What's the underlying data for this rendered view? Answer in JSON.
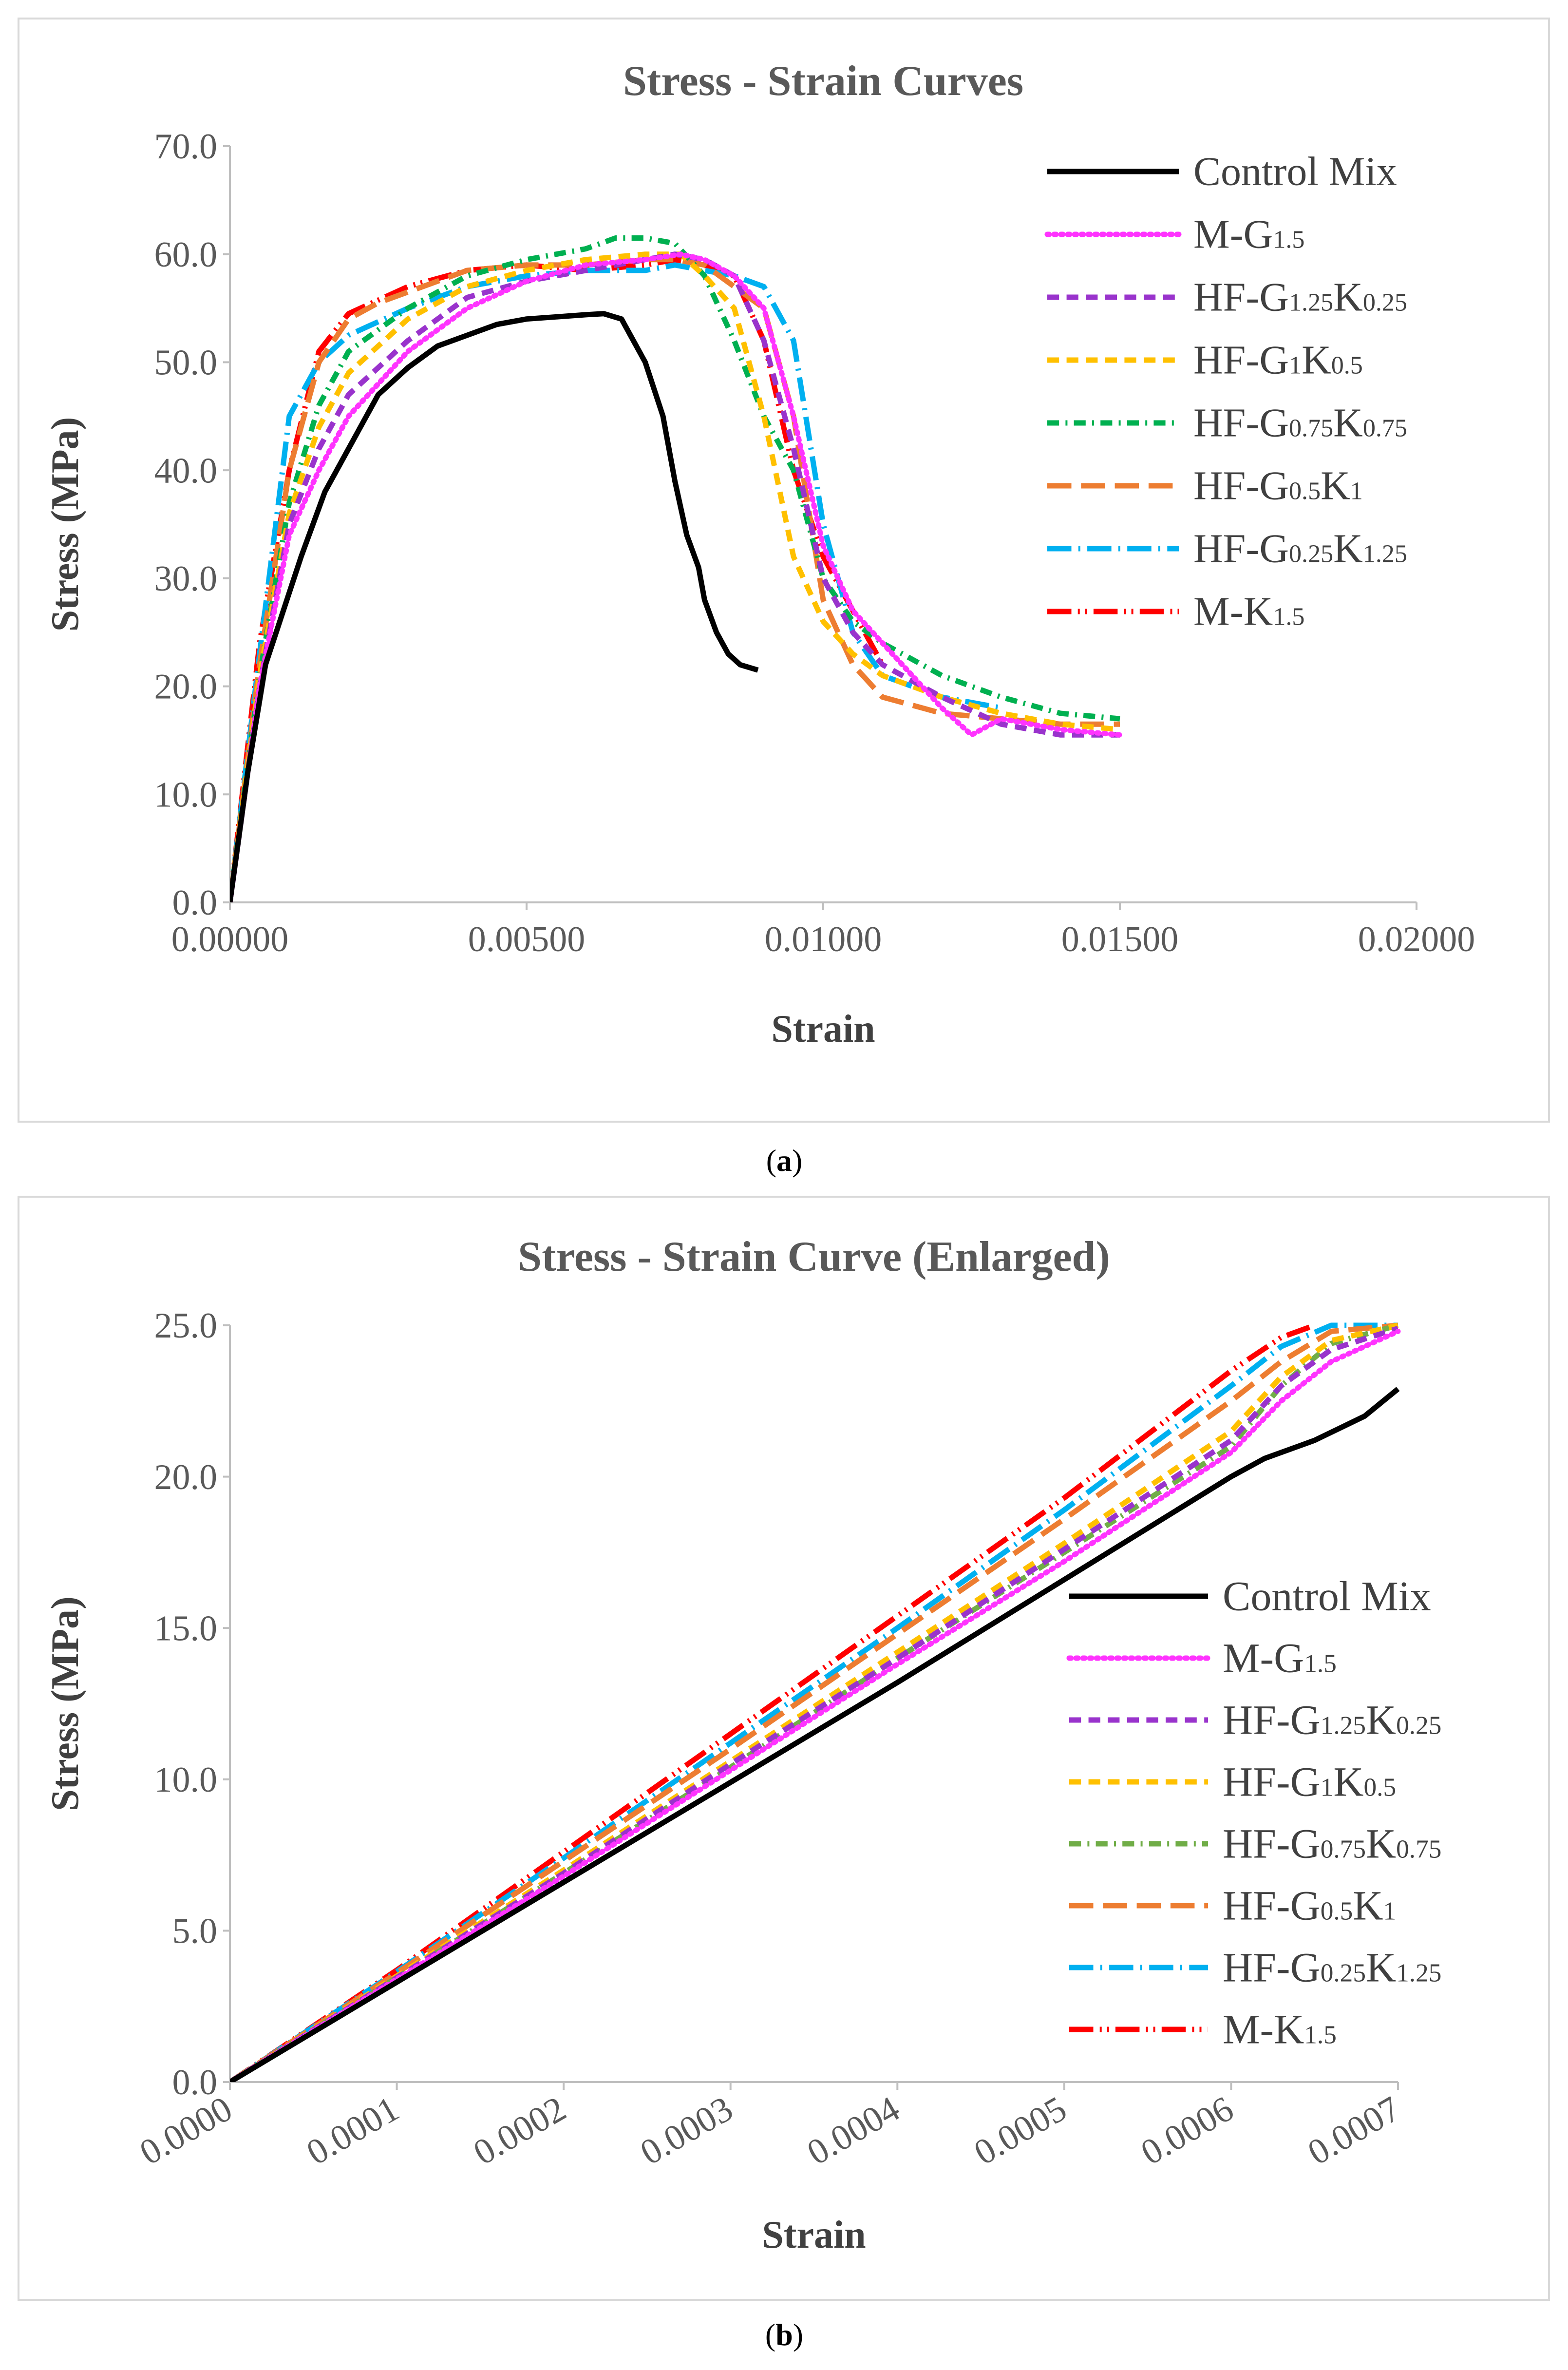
{
  "captions": {
    "a": "a",
    "b": "b"
  },
  "chart_data": [
    {
      "type": "line",
      "title": "Stress - Strain Curves",
      "xlabel": "Strain",
      "ylabel": "Stress (MPa)",
      "xlim": [
        0,
        0.02
      ],
      "ylim": [
        0,
        70
      ],
      "xticks": [
        "0.00000",
        "0.00500",
        "0.01000",
        "0.01500",
        "0.02000"
      ],
      "yticks": [
        "0.0",
        "10.0",
        "20.0",
        "30.0",
        "40.0",
        "50.0",
        "60.0",
        "70.0"
      ],
      "legend_position": "top-right",
      "series": [
        {
          "name": "Control Mix",
          "color": "#000000",
          "dash": "solid",
          "x": [
            0,
            0.0003,
            0.0006,
            0.0009,
            0.0012,
            0.0016,
            0.002,
            0.0025,
            0.003,
            0.0035,
            0.004,
            0.0045,
            0.005,
            0.0055,
            0.006,
            0.0063,
            0.0066,
            0.007,
            0.0073,
            0.0075,
            0.0077,
            0.0079,
            0.008,
            0.0082,
            0.0084,
            0.0086,
            0.0089
          ],
          "y": [
            0,
            12,
            22,
            27,
            32,
            38,
            42,
            47,
            49.5,
            51.5,
            52.5,
            53.5,
            54,
            54.2,
            54.4,
            54.5,
            54,
            50,
            45,
            39,
            34,
            31,
            28,
            25,
            23,
            22,
            21.5
          ]
        },
        {
          "name": "M-G1.5",
          "color": "#ff33ff",
          "dash": "dotted",
          "x": [
            0,
            0.0005,
            0.001,
            0.0015,
            0.002,
            0.003,
            0.004,
            0.005,
            0.006,
            0.007,
            0.0076,
            0.008,
            0.0085,
            0.009,
            0.0095,
            0.01,
            0.0105,
            0.011,
            0.012,
            0.0125,
            0.013,
            0.014,
            0.015
          ],
          "y": [
            0,
            20,
            34,
            40,
            45,
            51,
            55,
            57.5,
            59,
            59.5,
            60,
            59.5,
            58,
            55,
            45,
            33,
            27,
            24,
            18,
            15.5,
            17,
            16,
            15.5
          ]
        },
        {
          "name": "HF-G1.25K0.25",
          "color": "#9933cc",
          "dash": "dashed",
          "x": [
            0,
            0.0005,
            0.001,
            0.0015,
            0.002,
            0.003,
            0.004,
            0.005,
            0.006,
            0.007,
            0.0075,
            0.008,
            0.0085,
            0.009,
            0.0095,
            0.01,
            0.0105,
            0.011,
            0.012,
            0.013,
            0.014,
            0.015
          ],
          "y": [
            0,
            20,
            35,
            42,
            47,
            52,
            56,
            57.5,
            58.5,
            59.5,
            60,
            59.5,
            58,
            52,
            42,
            30,
            25,
            22,
            19,
            16.5,
            15.5,
            15.5
          ]
        },
        {
          "name": "HF-G1K0.5",
          "color": "#ffc000",
          "dash": "dashed",
          "x": [
            0,
            0.0005,
            0.001,
            0.0015,
            0.002,
            0.003,
            0.004,
            0.005,
            0.006,
            0.007,
            0.0076,
            0.008,
            0.0085,
            0.009,
            0.0095,
            0.01,
            0.0105,
            0.011,
            0.012,
            0.013,
            0.014,
            0.015
          ],
          "y": [
            0,
            21,
            36,
            44,
            49,
            54,
            57,
            58.5,
            59.5,
            60,
            60,
            58,
            55,
            45,
            32,
            26,
            23,
            21,
            19,
            17.5,
            16.5,
            16
          ]
        },
        {
          "name": "HF-G0.75K0.75",
          "color": "#00b050",
          "dash": "dashdot",
          "x": [
            0,
            0.0005,
            0.001,
            0.0015,
            0.002,
            0.003,
            0.004,
            0.005,
            0.006,
            0.0065,
            0.007,
            0.0075,
            0.008,
            0.0085,
            0.009,
            0.0095,
            0.01,
            0.0105,
            0.011,
            0.012,
            0.013,
            0.014,
            0.015
          ],
          "y": [
            0,
            21,
            37,
            46,
            51,
            55,
            58,
            59.5,
            60.5,
            61.5,
            61.5,
            61,
            58,
            52,
            45,
            40,
            30,
            26,
            24,
            21,
            19,
            17.5,
            17
          ]
        },
        {
          "name": "HF-G0.5K1",
          "color": "#ed7d31",
          "dash": "longdash",
          "x": [
            0,
            0.0005,
            0.001,
            0.0015,
            0.002,
            0.0025,
            0.003,
            0.004,
            0.005,
            0.006,
            0.007,
            0.0075,
            0.008,
            0.0085,
            0.009,
            0.0095,
            0.01,
            0.0105,
            0.011,
            0.012,
            0.013,
            0.014,
            0.015
          ],
          "y": [
            0,
            22,
            40,
            50,
            54,
            55.5,
            56.5,
            58.5,
            59,
            59,
            59.5,
            59.5,
            59,
            57,
            55,
            45,
            28,
            22,
            19,
            17.5,
            17,
            16.5,
            16.5
          ]
        },
        {
          "name": "HF-G0.25K1.25",
          "color": "#00b0f0",
          "dash": "longdashdot",
          "x": [
            0,
            0.0005,
            0.001,
            0.0015,
            0.002,
            0.003,
            0.004,
            0.005,
            0.006,
            0.007,
            0.0075,
            0.008,
            0.0085,
            0.009,
            0.0095,
            0.01,
            0.0105,
            0.011,
            0.012,
            0.013
          ],
          "y": [
            0,
            23,
            45,
            50,
            52.5,
            55,
            57,
            58,
            58.5,
            58.5,
            59,
            58.5,
            58,
            57,
            52,
            35,
            25,
            21,
            19,
            18
          ]
        },
        {
          "name": "M-K1.5",
          "color": "#ff0000",
          "dash": "longdashdotdot",
          "x": [
            0,
            0.0005,
            0.001,
            0.0015,
            0.002,
            0.003,
            0.004,
            0.005,
            0.006,
            0.007,
            0.0075,
            0.008,
            0.0085,
            0.009,
            0.0095,
            0.01,
            0.0105,
            0.011
          ],
          "y": [
            0,
            24,
            40,
            51,
            54.5,
            57,
            58.5,
            59,
            58.5,
            59,
            59.5,
            59,
            58,
            52,
            40,
            32,
            27,
            22
          ]
        }
      ]
    },
    {
      "type": "line",
      "title": "Stress - Strain Curve (Enlarged)",
      "xlabel": "Strain",
      "ylabel": "Stress (MPa)",
      "xlim": [
        0,
        0.0007
      ],
      "ylim": [
        0,
        25
      ],
      "xticks": [
        "0.0000",
        "0.0001",
        "0.0002",
        "0.0003",
        "0.0004",
        "0.0005",
        "0.0006",
        "0.0007"
      ],
      "yticks": [
        "0.0",
        "5.0",
        "10.0",
        "15.0",
        "20.0",
        "25.0"
      ],
      "legend_position": "right",
      "series": [
        {
          "name": "Control Mix",
          "color": "#000000",
          "dash": "solid",
          "x": [
            0,
            0.0001,
            0.0002,
            0.0003,
            0.0004,
            0.0005,
            0.0006,
            0.00062,
            0.00065,
            0.00068,
            0.0007
          ],
          "y": [
            0,
            3.3,
            6.6,
            9.9,
            13.2,
            16.6,
            20,
            20.6,
            21.2,
            22,
            22.9
          ]
        },
        {
          "name": "M-G1.5",
          "color": "#ff33ff",
          "dash": "dotted",
          "x": [
            0,
            0.0001,
            0.0002,
            0.0003,
            0.0004,
            0.0005,
            0.0006,
            0.00063,
            0.00066,
            0.0007
          ],
          "y": [
            0,
            3.4,
            6.8,
            10.3,
            13.8,
            17.2,
            20.8,
            22.5,
            23.8,
            24.8
          ]
        },
        {
          "name": "HF-G1.25K0.25",
          "color": "#9933cc",
          "dash": "dashed",
          "x": [
            0,
            0.0001,
            0.0002,
            0.0003,
            0.0004,
            0.0005,
            0.0006,
            0.00063,
            0.00066,
            0.0007
          ],
          "y": [
            0,
            3.45,
            6.9,
            10.5,
            14,
            17.6,
            21.2,
            23,
            24.2,
            24.9
          ]
        },
        {
          "name": "HF-G1K0.5",
          "color": "#ffc000",
          "dash": "dashed",
          "x": [
            0,
            0.0001,
            0.0002,
            0.0003,
            0.0004,
            0.0005,
            0.0006,
            0.00063,
            0.00066,
            0.0007
          ],
          "y": [
            0,
            3.5,
            7,
            10.6,
            14.2,
            17.8,
            21.5,
            23.3,
            24.5,
            25
          ]
        },
        {
          "name": "HF-G0.75K0.75",
          "color": "#70ad47",
          "dash": "dashdot",
          "x": [
            0,
            0.0001,
            0.0002,
            0.0003,
            0.0004,
            0.0005,
            0.0006,
            0.00063,
            0.00066,
            0.0007
          ],
          "y": [
            0,
            3.45,
            6.9,
            10.4,
            14,
            17.5,
            21,
            23,
            24.4,
            25
          ]
        },
        {
          "name": "HF-G0.5K1",
          "color": "#ed7d31",
          "dash": "longdash",
          "x": [
            0,
            0.0001,
            0.0002,
            0.0003,
            0.0004,
            0.0005,
            0.0006,
            0.00063,
            0.00066,
            0.0007
          ],
          "y": [
            0,
            3.6,
            7.3,
            11,
            14.8,
            18.6,
            22.5,
            23.8,
            24.8,
            25
          ]
        },
        {
          "name": "HF-G0.25K1.25",
          "color": "#00b0f0",
          "dash": "longdashdot",
          "x": [
            0,
            0.0001,
            0.0002,
            0.0003,
            0.0004,
            0.0005,
            0.0006,
            0.00063,
            0.00066,
            0.0007
          ],
          "y": [
            0,
            3.65,
            7.4,
            11.2,
            15,
            18.9,
            23,
            24.3,
            25,
            25
          ]
        },
        {
          "name": "M-K1.5",
          "color": "#ff0000",
          "dash": "longdashdotdot",
          "x": [
            0,
            0.0001,
            0.0002,
            0.0003,
            0.0004,
            0.0005,
            0.0006,
            0.00063,
            0.00065
          ],
          "y": [
            0,
            3.7,
            7.6,
            11.5,
            15.4,
            19.3,
            23.5,
            24.6,
            25
          ]
        }
      ]
    }
  ]
}
